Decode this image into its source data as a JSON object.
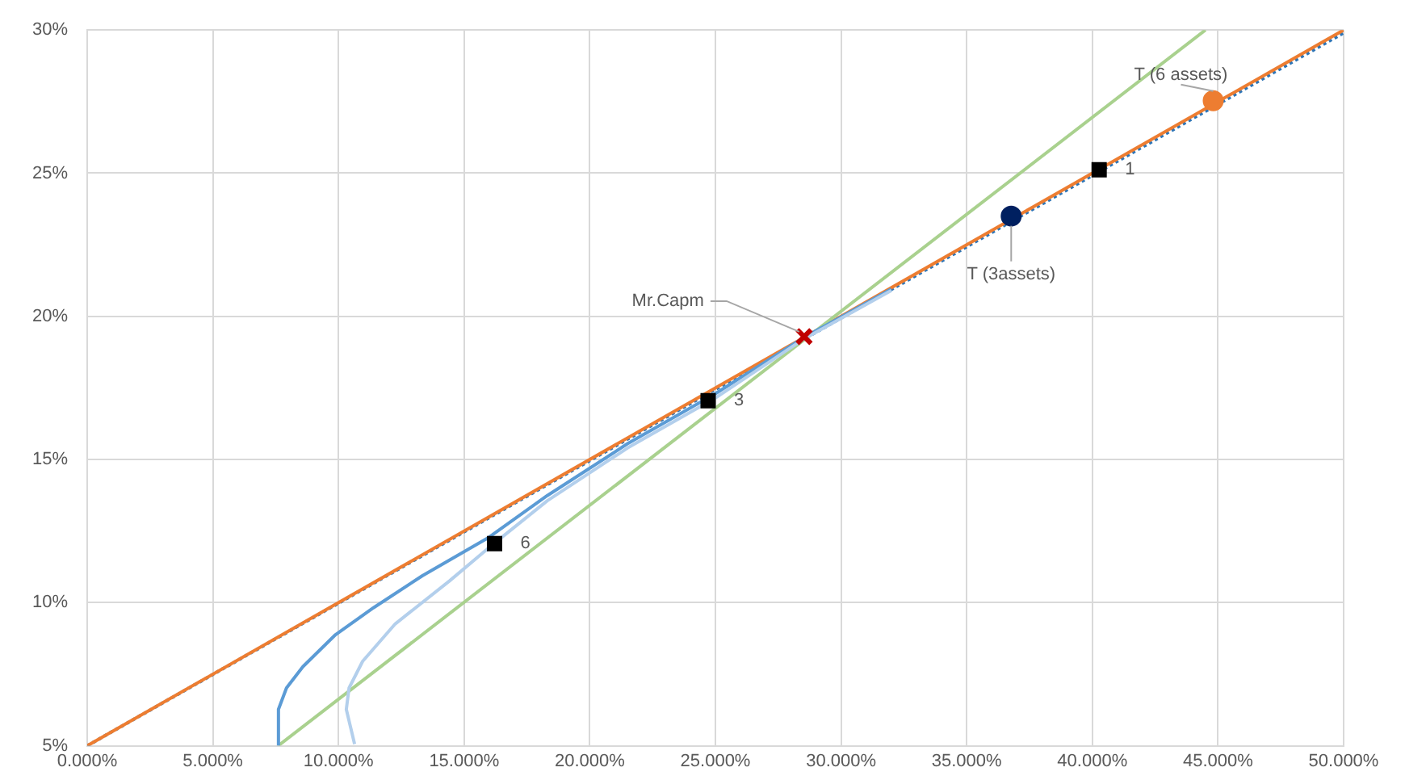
{
  "chart_data": {
    "type": "scatter",
    "grid": true,
    "legend": false,
    "xlim": [
      0,
      50
    ],
    "xticks": [
      {
        "value": 0,
        "label": "0.000%"
      },
      {
        "value": 5,
        "label": "5.000%"
      },
      {
        "value": 10,
        "label": "10.000%"
      },
      {
        "value": 15,
        "label": "15.000%"
      },
      {
        "value": 20,
        "label": "20.000%"
      },
      {
        "value": 25,
        "label": "25.000%"
      },
      {
        "value": 30,
        "label": "30.000%"
      },
      {
        "value": 35,
        "label": "35.000%"
      },
      {
        "value": 40,
        "label": "40.000%"
      },
      {
        "value": 45,
        "label": "45.000%"
      },
      {
        "value": 50,
        "label": "50.000%"
      }
    ],
    "ylim": [
      5,
      30
    ],
    "yticks": [
      {
        "value": 5,
        "label": "5%"
      },
      {
        "value": 10,
        "label": "10%"
      },
      {
        "value": 15,
        "label": "15%"
      },
      {
        "value": 20,
        "label": "20%"
      },
      {
        "value": 25,
        "label": "25%"
      },
      {
        "value": 30,
        "label": "30%"
      }
    ],
    "series": [
      {
        "type": "line",
        "color": "#b3cfec",
        "marker": "none",
        "line_style": "solid",
        "x": [
          10.64,
          10.31,
          10.42,
          10.96,
          12.26,
          14.42,
          15.93,
          18.31,
          21.5,
          25,
          28.5,
          32
        ],
        "values": [
          5.06,
          6.27,
          7.02,
          7.95,
          9.26,
          10.76,
          11.88,
          13.56,
          15.4,
          17.15,
          19.2,
          20.9
        ]
      },
      {
        "type": "line",
        "color": "#5b9bd5",
        "marker": "none",
        "line_style": "solid",
        "x": [
          7.61,
          7.61,
          7.93,
          8.58,
          9.88,
          11.39,
          13.34,
          15.93,
          18.31,
          21.5,
          25,
          28.5,
          32
        ],
        "values": [
          5.0,
          6.27,
          7.02,
          7.76,
          8.88,
          9.82,
          10.94,
          12.25,
          13.74,
          15.55,
          17.3,
          19.25,
          20.95
        ]
      },
      {
        "type": "line",
        "color": "#a9d18e",
        "marker": "none",
        "line_style": "solid",
        "x": [
          7.6,
          44.5
        ],
        "values": [
          5,
          30
        ]
      },
      {
        "type": "line",
        "color": "#ed7d31",
        "marker": "none",
        "line_style": "solid",
        "x": [
          0,
          50
        ],
        "values": [
          5,
          30
        ]
      },
      {
        "type": "line",
        "color": "#2e75b6",
        "marker": "none",
        "line_style": "dotted",
        "x": [
          0,
          50
        ],
        "values": [
          5,
          29.9
        ]
      },
      {
        "color": "#000000",
        "marker": "square",
        "x": [
          40.27,
          24.71,
          16.21
        ],
        "values": [
          25.12,
          17.05,
          12.06
        ]
      },
      {
        "color": "#ed7d31",
        "marker": "circle",
        "x": [
          44.81
        ],
        "values": [
          27.53
        ]
      },
      {
        "color": "#002060",
        "marker": "circle",
        "x": [
          36.77
        ],
        "values": [
          23.5
        ]
      },
      {
        "color": "#c00000",
        "marker": "cross",
        "x": [
          28.53
        ],
        "values": [
          19.29
        ]
      }
    ],
    "annotations": [
      {
        "text": "Mr.Capm",
        "x": 28.53,
        "y": 19.29
      },
      {
        "text": "T (6 assets)",
        "x": 44.81,
        "y": 27.53
      },
      {
        "text": "T (3assets)",
        "x": 36.77,
        "y": 23.5
      },
      {
        "text": "1",
        "x": 40.27,
        "y": 25.12
      },
      {
        "text": "3",
        "x": 24.71,
        "y": 17.05
      },
      {
        "text": "6",
        "x": 16.21,
        "y": 12.06
      }
    ]
  }
}
